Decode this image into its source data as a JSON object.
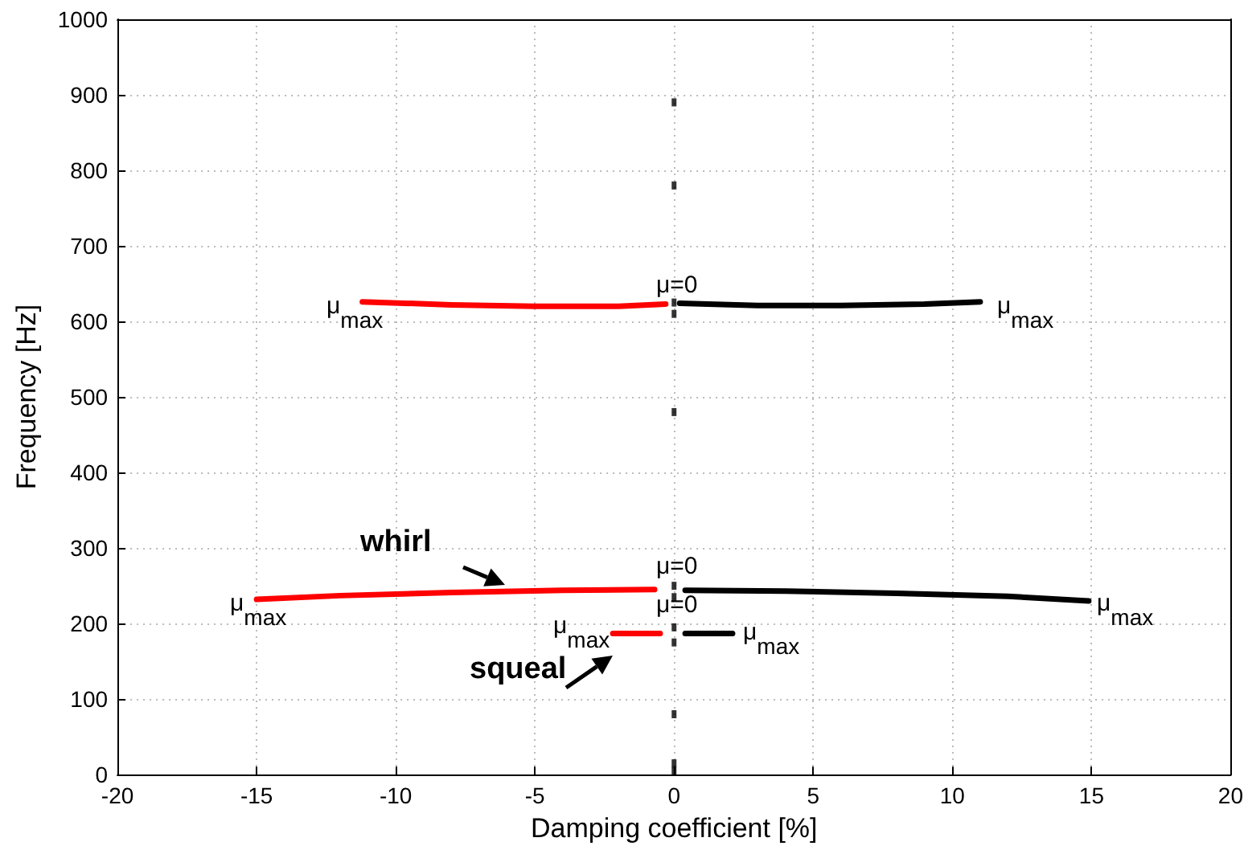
{
  "chart_data": {
    "type": "line",
    "xlabel": "Damping coefficient [%]",
    "ylabel": "Frequency [Hz]",
    "xlim": [
      -20,
      20
    ],
    "xticks": [
      -20,
      -15,
      -10,
      -5,
      0,
      5,
      10,
      15,
      20
    ],
    "ylim": [
      0,
      1000
    ],
    "yticks": [
      0,
      100,
      200,
      300,
      400,
      500,
      600,
      700,
      800,
      900,
      {
        "value": 1000,
        "label": "1000"
      }
    ],
    "grid": true,
    "line_style": "solid",
    "series": [
      {
        "color": "#ff0000",
        "x": [
          -11.2,
          -8,
          -5,
          -2,
          -0.3
        ],
        "values": [
          626,
          622,
          620,
          620,
          623
        ]
      },
      {
        "color": "#000000",
        "x": [
          0.2,
          3,
          6,
          9,
          11
        ],
        "values": [
          624,
          621,
          621,
          623,
          626
        ]
      },
      {
        "color": "#ff0000",
        "x": [
          -15,
          -12,
          -8,
          -4,
          -0.7
        ],
        "values": [
          232,
          237,
          241,
          244,
          245
        ]
      },
      {
        "color": "#000000",
        "x": [
          0.4,
          4,
          8,
          12,
          14.9
        ],
        "values": [
          244,
          243,
          240,
          236,
          230
        ]
      },
      {
        "color": "#ff0000",
        "x": [
          -2.2,
          -0.5
        ],
        "values": [
          187,
          187
        ]
      },
      {
        "color": "#000000",
        "x": [
          0.4,
          2.1
        ],
        "values": [
          187,
          187
        ]
      },
      {
        "type": "scatter",
        "color": "#000000",
        "x": [
          0,
          0,
          0,
          0,
          0,
          0,
          0,
          0,
          0,
          0,
          0,
          0
        ],
        "values": [
          890,
          780,
          610,
          625,
          480,
          250,
          235,
          195,
          175,
          80,
          15,
          5
        ]
      }
    ],
    "annotations": [
      "μ$_{max}$",
      "μ$_{max}$",
      "μ=0",
      "μ$_{max}$",
      "μ$_{max}$",
      "μ=0",
      "μ$_{max}$",
      "μ$_{max}$",
      "μ=0",
      "whirl",
      "squeal"
    ]
  }
}
